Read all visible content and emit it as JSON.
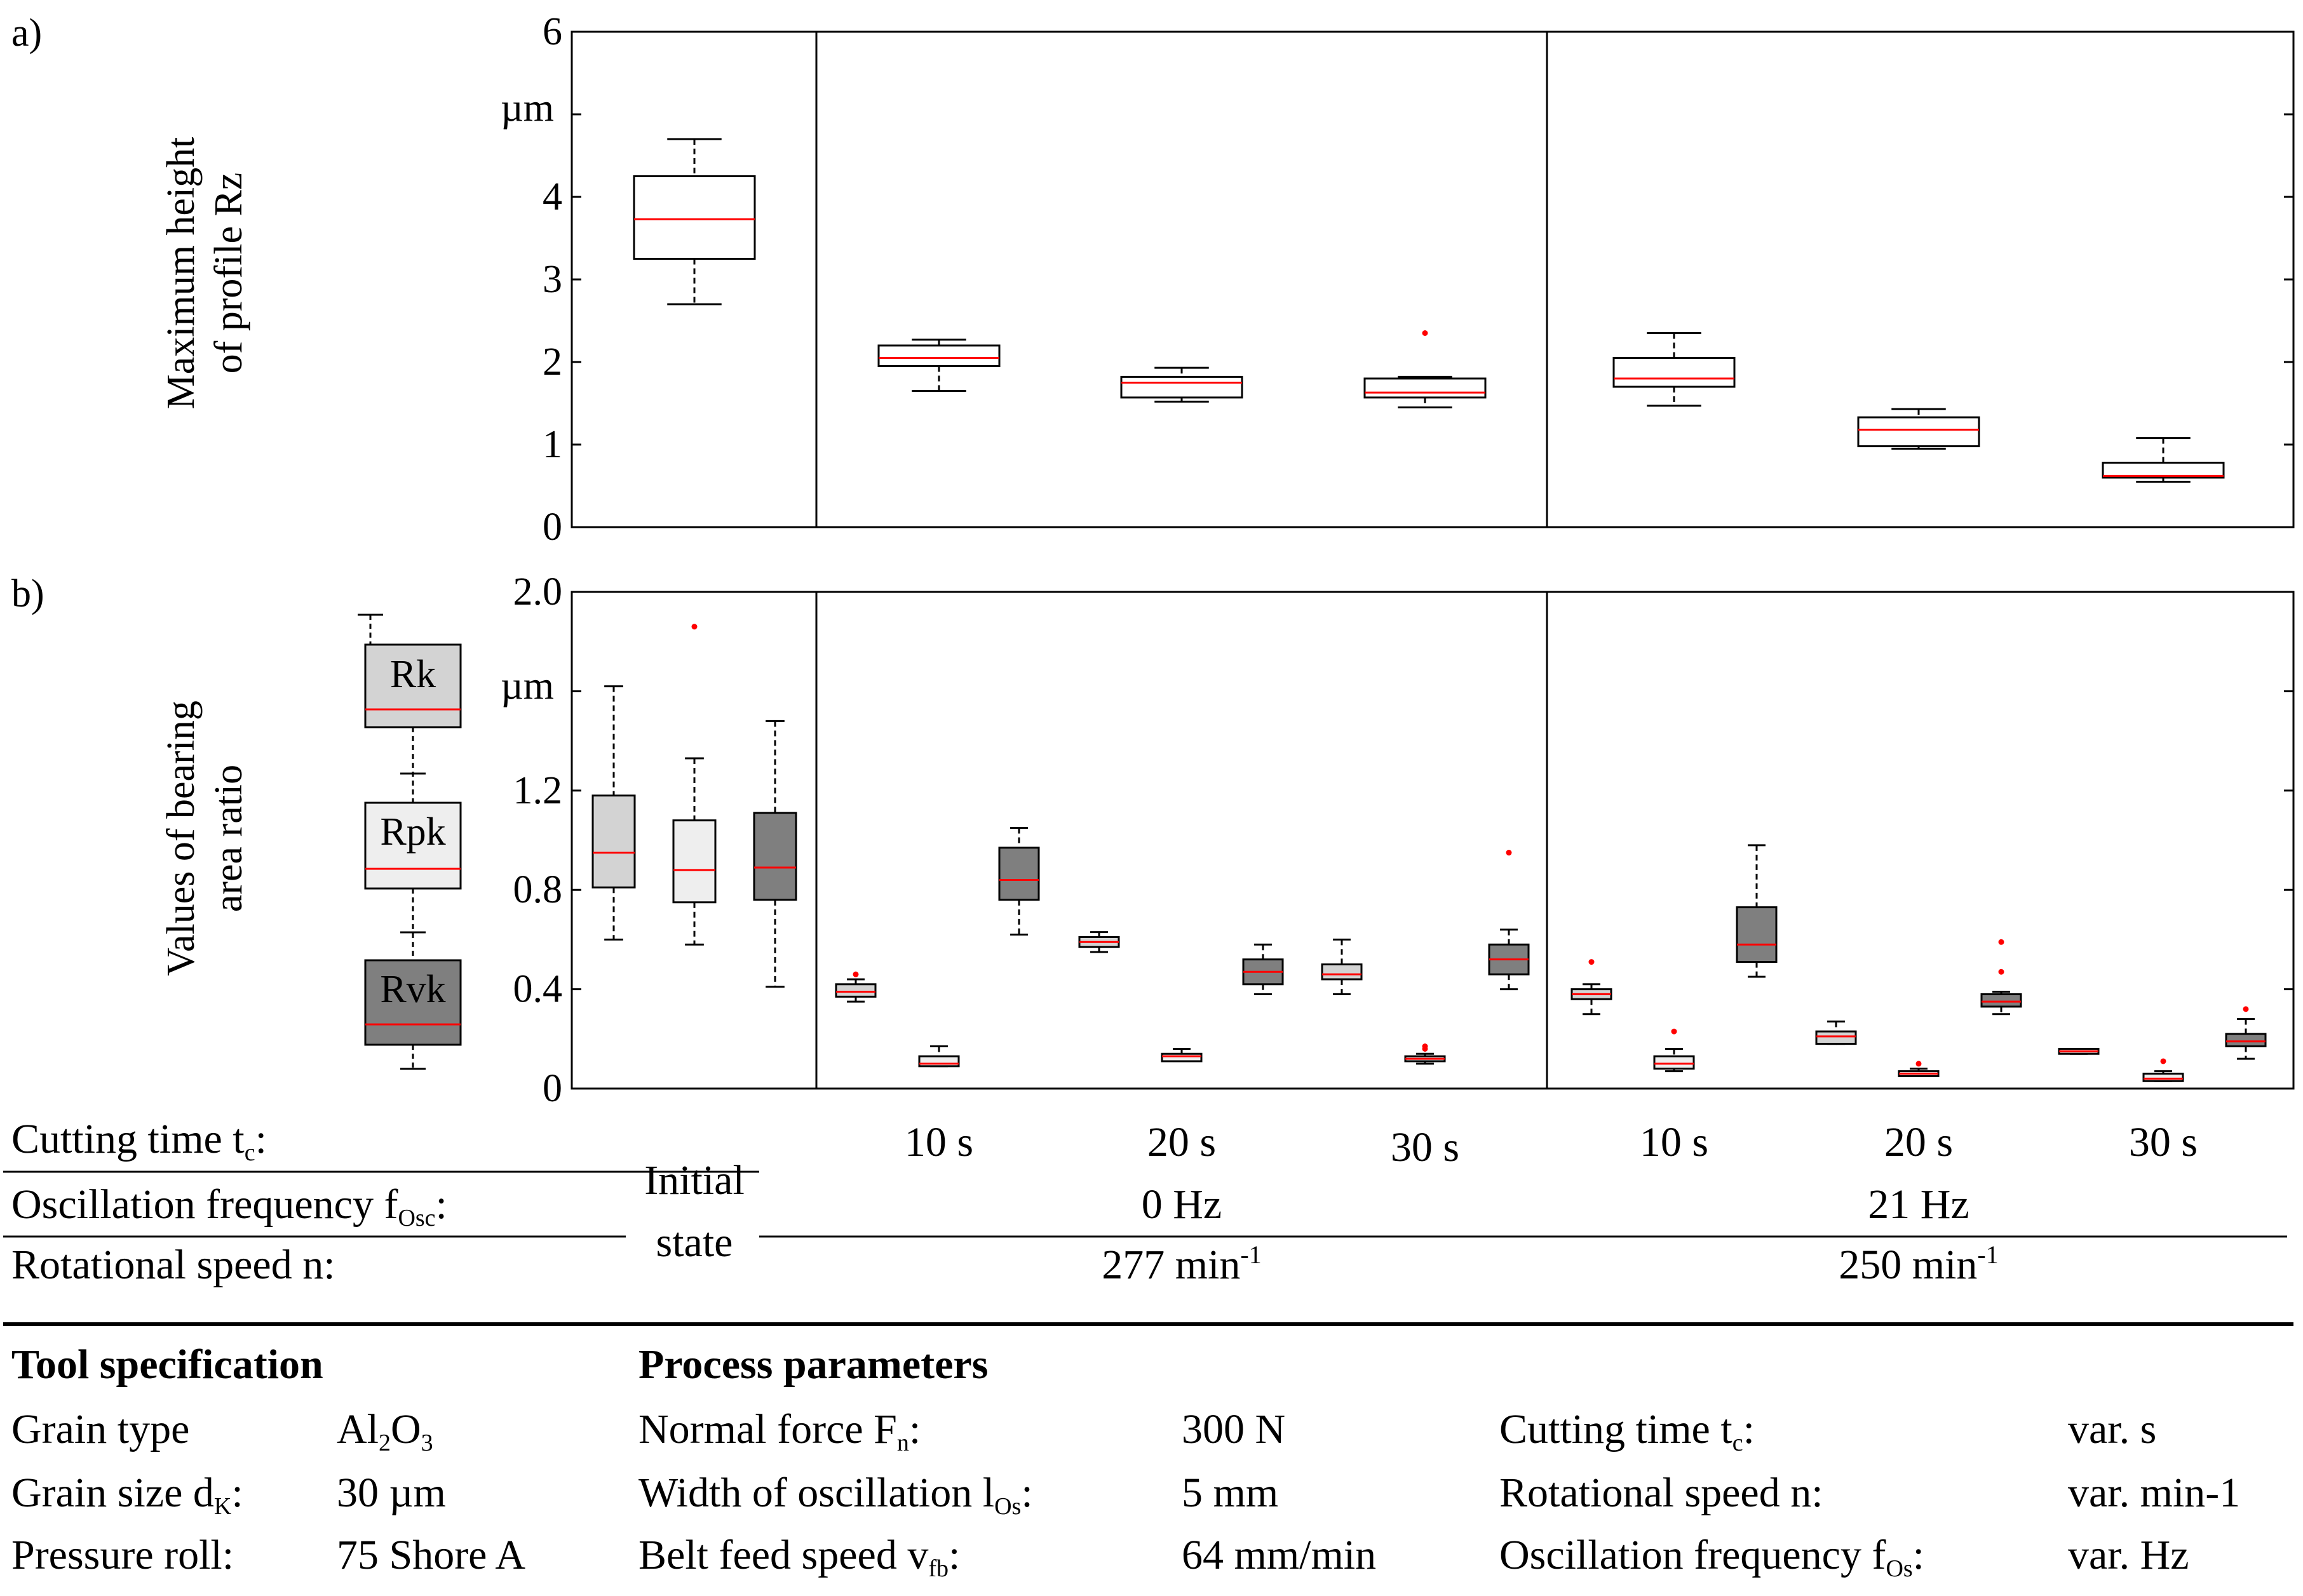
{
  "panel_labels": {
    "a": "a)",
    "b": "b)"
  },
  "colors": {
    "box_white": "#ffffff",
    "rk": "#d3d3d3",
    "rpk": "#eeeeee",
    "rvk": "#7f7f7f",
    "median": "#ff0000",
    "outlier": "#ff0000"
  },
  "chart_data": [
    {
      "type": "box",
      "ylabel_line1": "Maximum height",
      "ylabel_line2": "of profile Rz",
      "unit": "µm",
      "ylim": [
        0,
        6
      ],
      "yticks": [
        "0",
        "1",
        "2",
        "3",
        "4",
        "5",
        "6"
      ],
      "group_names": [
        "Initial state",
        "0 Hz / 277 min-1",
        "21 Hz / 250 min-1"
      ],
      "boxes": [
        {
          "label": "Initial state",
          "min": 2.7,
          "q1": 3.25,
          "median": 3.73,
          "q3": 4.25,
          "max": 4.7,
          "outliers": []
        },
        {
          "label": "0 Hz 10 s",
          "min": 1.65,
          "q1": 1.95,
          "median": 2.05,
          "q3": 2.2,
          "max": 2.27,
          "outliers": []
        },
        {
          "label": "0 Hz 20 s",
          "min": 1.52,
          "q1": 1.57,
          "median": 1.75,
          "q3": 1.82,
          "max": 1.93,
          "outliers": []
        },
        {
          "label": "0 Hz 30 s",
          "min": 1.45,
          "q1": 1.57,
          "median": 1.63,
          "q3": 1.8,
          "max": 1.82,
          "outliers": [
            2.35
          ]
        },
        {
          "label": "21 Hz 10 s",
          "min": 1.47,
          "q1": 1.7,
          "median": 1.8,
          "q3": 2.05,
          "max": 2.35,
          "outliers": []
        },
        {
          "label": "21 Hz 20 s",
          "min": 0.95,
          "q1": 0.98,
          "median": 1.18,
          "q3": 1.33,
          "max": 1.43,
          "outliers": []
        },
        {
          "label": "21 Hz 30 s",
          "min": 0.55,
          "q1": 0.6,
          "median": 0.62,
          "q3": 0.78,
          "max": 1.08,
          "outliers": []
        }
      ]
    },
    {
      "type": "box",
      "ylabel_line1": "Values of  bearing",
      "ylabel_line2": "area ratio",
      "unit": "µm",
      "ylim": [
        0,
        2.0
      ],
      "yticks": [
        "0",
        "0.4",
        "0.8",
        "1.2",
        "2.0"
      ],
      "legend": [
        {
          "name": "Rk",
          "color": "#d3d3d3"
        },
        {
          "name": "Rpk",
          "color": "#eeeeee"
        },
        {
          "name": "Rvk",
          "color": "#7f7f7f"
        }
      ],
      "boxes": [
        {
          "group": "Initial state",
          "param": "Rk",
          "min": 0.6,
          "q1": 0.81,
          "median": 0.95,
          "q3": 1.18,
          "max": 1.62,
          "outliers": []
        },
        {
          "group": "Initial state",
          "param": "Rpk",
          "min": 0.58,
          "q1": 0.75,
          "median": 0.88,
          "q3": 1.08,
          "max": 1.33,
          "outliers": [
            1.86
          ]
        },
        {
          "group": "Initial state",
          "param": "Rvk",
          "min": 0.41,
          "q1": 0.76,
          "median": 0.89,
          "q3": 1.11,
          "max": 1.48,
          "outliers": []
        },
        {
          "group": "0 Hz 10 s",
          "param": "Rk",
          "min": 0.35,
          "q1": 0.37,
          "median": 0.39,
          "q3": 0.42,
          "max": 0.44,
          "outliers": [
            0.46
          ]
        },
        {
          "group": "0 Hz 10 s",
          "param": "Rpk",
          "min": 0.09,
          "q1": 0.09,
          "median": 0.1,
          "q3": 0.13,
          "max": 0.17,
          "outliers": []
        },
        {
          "group": "0 Hz 10 s",
          "param": "Rvk",
          "min": 0.62,
          "q1": 0.76,
          "median": 0.84,
          "q3": 0.97,
          "max": 1.05,
          "outliers": []
        },
        {
          "group": "0 Hz 20 s",
          "param": "Rk",
          "min": 0.55,
          "q1": 0.57,
          "median": 0.59,
          "q3": 0.61,
          "max": 0.63,
          "outliers": []
        },
        {
          "group": "0 Hz 20 s",
          "param": "Rpk",
          "min": 0.11,
          "q1": 0.11,
          "median": 0.13,
          "q3": 0.14,
          "max": 0.16,
          "outliers": []
        },
        {
          "group": "0 Hz 20 s",
          "param": "Rvk",
          "min": 0.38,
          "q1": 0.42,
          "median": 0.47,
          "q3": 0.52,
          "max": 0.58,
          "outliers": []
        },
        {
          "group": "0 Hz 30 s",
          "param": "Rk",
          "min": 0.38,
          "q1": 0.44,
          "median": 0.46,
          "q3": 0.5,
          "max": 0.6,
          "outliers": []
        },
        {
          "group": "0 Hz 30 s",
          "param": "Rpk",
          "min": 0.1,
          "q1": 0.11,
          "median": 0.12,
          "q3": 0.13,
          "max": 0.14,
          "outliers": [
            0.16,
            0.17
          ]
        },
        {
          "group": "0 Hz 30 s",
          "param": "Rvk",
          "min": 0.4,
          "q1": 0.46,
          "median": 0.52,
          "q3": 0.58,
          "max": 0.64,
          "outliers": [
            0.95
          ]
        },
        {
          "group": "21 Hz 10 s",
          "param": "Rk",
          "min": 0.3,
          "q1": 0.36,
          "median": 0.38,
          "q3": 0.4,
          "max": 0.42,
          "outliers": [
            0.51
          ]
        },
        {
          "group": "21 Hz 10 s",
          "param": "Rpk",
          "min": 0.07,
          "q1": 0.08,
          "median": 0.1,
          "q3": 0.13,
          "max": 0.16,
          "outliers": [
            0.23
          ]
        },
        {
          "group": "21 Hz 10 s",
          "param": "Rvk",
          "min": 0.45,
          "q1": 0.51,
          "median": 0.58,
          "q3": 0.73,
          "max": 0.98,
          "outliers": []
        },
        {
          "group": "21 Hz 20 s",
          "param": "Rk",
          "min": 0.18,
          "q1": 0.18,
          "median": 0.21,
          "q3": 0.23,
          "max": 0.27,
          "outliers": []
        },
        {
          "group": "21 Hz 20 s",
          "param": "Rpk",
          "min": 0.05,
          "q1": 0.05,
          "median": 0.06,
          "q3": 0.07,
          "max": 0.08,
          "outliers": [
            0.1
          ]
        },
        {
          "group": "21 Hz 20 s",
          "param": "Rvk",
          "min": 0.3,
          "q1": 0.33,
          "median": 0.35,
          "q3": 0.38,
          "max": 0.39,
          "outliers": [
            0.47,
            0.59
          ]
        },
        {
          "group": "21 Hz 30 s",
          "param": "Rk",
          "min": 0.14,
          "q1": 0.14,
          "median": 0.15,
          "q3": 0.16,
          "max": 0.16,
          "outliers": []
        },
        {
          "group": "21 Hz 30 s",
          "param": "Rpk",
          "min": 0.03,
          "q1": 0.03,
          "median": 0.04,
          "q3": 0.06,
          "max": 0.07,
          "outliers": [
            0.11
          ]
        },
        {
          "group": "21 Hz 30 s",
          "param": "Rvk",
          "min": 0.12,
          "q1": 0.17,
          "median": 0.19,
          "q3": 0.22,
          "max": 0.28,
          "outliers": [
            0.32
          ]
        }
      ]
    }
  ],
  "table": {
    "cutting_time_label": "Cutting time t",
    "cutting_time_sub": "c",
    "oscillation_label": "Oscillation frequency f",
    "oscillation_sub": "Osc",
    "rotational_label": "Rotational speed n:",
    "colon": ":",
    "initial_line1": "Initial",
    "initial_line2": "state",
    "cutting_times": [
      "10 s",
      "20 s",
      "30 s",
      "10 s",
      "20 s",
      "30 s"
    ],
    "freq_0": "0 Hz",
    "freq_21": "21 Hz",
    "speed_277": "277 min",
    "speed_250": "250 min",
    "speed_sup": "-1"
  },
  "specs": {
    "tool_title": "Tool specification",
    "process_title": "Process parameters",
    "grain_type_label": "Grain type",
    "grain_type_value_a": "Al",
    "grain_type_sub_a": "2",
    "grain_type_value_b": "O",
    "grain_type_sub_b": "3",
    "grain_size_label": "Grain size d",
    "grain_size_sub": "K",
    "grain_size_value": "30 µm",
    "pressure_roll_label": "Pressure roll:",
    "pressure_roll_value": "75 Shore A",
    "normal_force_label": "Normal force F",
    "normal_force_sub": "n",
    "normal_force_value": "300 N",
    "width_osc_label": "Width of oscillation  l",
    "width_osc_sub": "Os",
    "width_osc_value": "5 mm",
    "belt_feed_label": "Belt feed speed v",
    "belt_feed_sub": "fb",
    "belt_feed_value": "64 mm/min",
    "cutting_time_label": "Cutting time t",
    "cutting_time_sub": "c",
    "cutting_time_value": "var. s",
    "rot_speed_label": "Rotational speed n:",
    "rot_speed_value": "var. min-1",
    "osc_freq_label": "Oscillation frequency f",
    "osc_freq_sub": "Os",
    "osc_freq_value": "var. Hz"
  }
}
